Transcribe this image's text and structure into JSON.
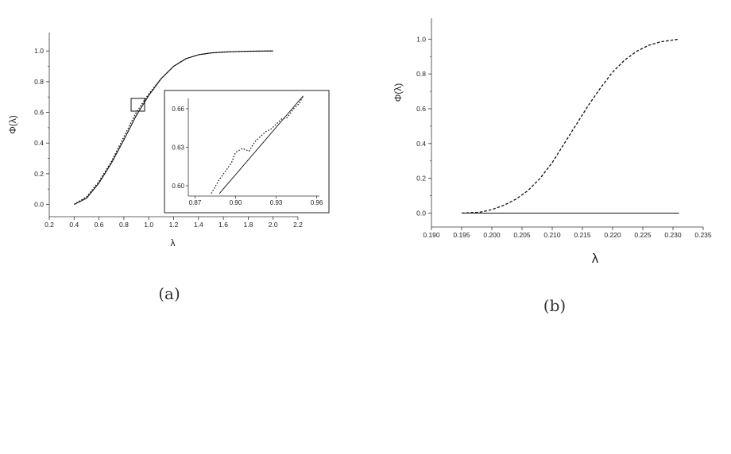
{
  "chart_data": [
    {
      "panel": "(a)",
      "type": "line",
      "ylabel": "Φ(λ)",
      "xlabel": "λ",
      "xlim": [
        0.2,
        2.2
      ],
      "ylim": [
        -0.08,
        1.12
      ],
      "xticks": [
        "0.2",
        "0.4",
        "0.6",
        "0.8",
        "1.0",
        "1.2",
        "1.4",
        "1.6",
        "1.8",
        "2.0",
        "2.2"
      ],
      "yticks": [
        "0.0",
        "0.2",
        "0.4",
        "0.6",
        "0.8",
        "1.0"
      ],
      "series": [
        {
          "style": "solid",
          "x": [
            0.4,
            0.5,
            0.6,
            0.7,
            0.8,
            0.9,
            1.0,
            1.1,
            1.2,
            1.3,
            1.4,
            1.5,
            1.6,
            1.7,
            1.8,
            1.9,
            2.0
          ],
          "y": [
            0.0,
            0.04,
            0.14,
            0.27,
            0.42,
            0.58,
            0.71,
            0.82,
            0.9,
            0.95,
            0.975,
            0.987,
            0.993,
            0.996,
            0.998,
            0.999,
            1.0
          ]
        },
        {
          "style": "dotted",
          "x": [
            0.4,
            0.5,
            0.6,
            0.7,
            0.8,
            0.9,
            1.0,
            1.1,
            1.2,
            1.3,
            1.4,
            1.5,
            1.6,
            1.7,
            1.8,
            1.9,
            2.0
          ],
          "y": [
            0.0,
            0.05,
            0.15,
            0.28,
            0.44,
            0.6,
            0.72,
            0.82,
            0.9,
            0.95,
            0.975,
            0.987,
            0.993,
            0.996,
            0.998,
            0.999,
            1.0
          ]
        }
      ],
      "zoom_box": {
        "xlim": [
          0.87,
          0.96
        ],
        "ylim": [
          0.59,
          0.67
        ]
      },
      "inset": {
        "xlim": [
          0.865,
          0.962
        ],
        "ylim": [
          0.592,
          0.668
        ],
        "xticks": [
          "0.87",
          "0.90",
          "0.93",
          "0.96"
        ],
        "yticks": [
          "0.60",
          "0.63",
          "0.66"
        ],
        "series": [
          {
            "style": "solid",
            "x": [
              0.888,
              0.95
            ],
            "y": [
              0.594,
              0.67
            ]
          },
          {
            "style": "dotted",
            "x": [
              0.882,
              0.888,
              0.893,
              0.897,
              0.9,
              0.905,
              0.91,
              0.914,
              0.918,
              0.922,
              0.926,
              0.93,
              0.934,
              0.938,
              0.943,
              0.947,
              0.95
            ],
            "y": [
              0.594,
              0.605,
              0.612,
              0.618,
              0.626,
              0.629,
              0.627,
              0.634,
              0.638,
              0.642,
              0.644,
              0.648,
              0.652,
              0.653,
              0.66,
              0.664,
              0.67
            ]
          }
        ]
      }
    },
    {
      "panel": "(b)",
      "type": "line",
      "ylabel": "Φ(λ)",
      "xlabel": "λ",
      "xlim": [
        0.19,
        0.235
      ],
      "ylim": [
        -0.08,
        1.12
      ],
      "xticks": [
        "0.190",
        "0.195",
        "0.200",
        "0.205",
        "0.210",
        "0.215",
        "0.220",
        "0.225",
        "0.230",
        "0.235"
      ],
      "yticks": [
        "0.0",
        "0.2",
        "0.4",
        "0.6",
        "0.8",
        "1.0"
      ],
      "series": [
        {
          "style": "dashed",
          "x": [
            0.195,
            0.198,
            0.2,
            0.202,
            0.204,
            0.206,
            0.208,
            0.21,
            0.212,
            0.214,
            0.216,
            0.218,
            0.22,
            0.222,
            0.224,
            0.226,
            0.228,
            0.23,
            0.231
          ],
          "y": [
            0.0,
            0.005,
            0.02,
            0.045,
            0.08,
            0.13,
            0.2,
            0.29,
            0.4,
            0.51,
            0.62,
            0.72,
            0.81,
            0.88,
            0.93,
            0.965,
            0.985,
            0.995,
            1.0
          ]
        },
        {
          "style": "solid",
          "x": [
            0.195,
            0.231
          ],
          "y": [
            0.0,
            0.0
          ]
        }
      ]
    }
  ]
}
